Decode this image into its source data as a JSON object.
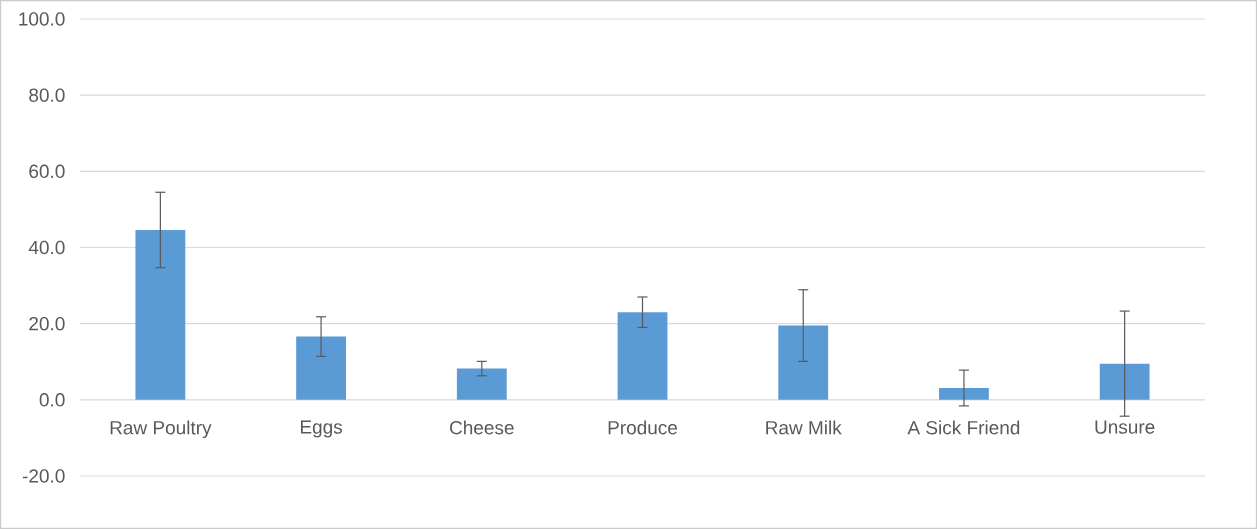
{
  "chart_data": {
    "type": "bar",
    "categories": [
      "Raw Poultry",
      "Eggs",
      "Cheese",
      "Produce",
      "Raw Milk",
      "A Sick Friend",
      "Unsure"
    ],
    "values": [
      44.6,
      16.6,
      8.2,
      23.0,
      19.5,
      3.1,
      9.5
    ],
    "errors": [
      9.9,
      5.2,
      1.9,
      4.0,
      9.4,
      4.7,
      13.8
    ],
    "color": "#5b9bd5",
    "ylim": [
      -20,
      100
    ],
    "yticks": [
      {
        "value": -20,
        "label": "-20.0"
      },
      {
        "value": 0,
        "label": "0.0"
      },
      {
        "value": 20,
        "label": "20.0"
      },
      {
        "value": 40,
        "label": "40.0"
      },
      {
        "value": 60,
        "label": "60.0"
      },
      {
        "value": 80,
        "label": "80.0"
      },
      {
        "value": 100,
        "label": "100.0"
      }
    ],
    "grid": "y"
  }
}
